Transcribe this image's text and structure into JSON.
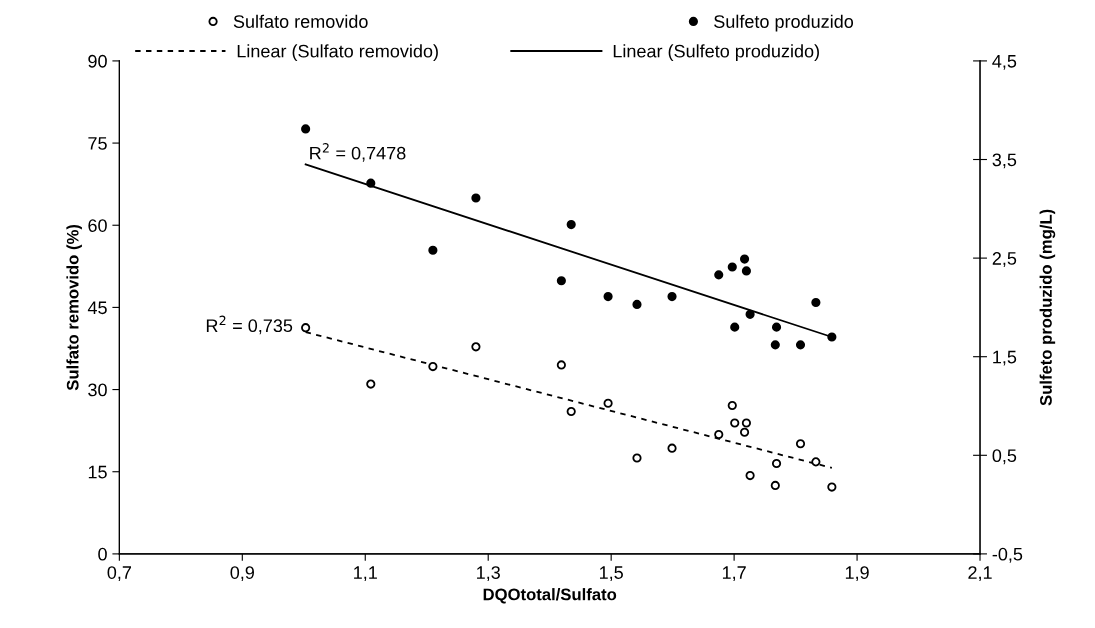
{
  "chart_data": {
    "type": "scatter",
    "xlabel": "DQOtotal/Sulfato",
    "ylabel": "Sulfato removido (%)",
    "y2label": "Sulfeto produzido (mg/L)",
    "xlim": [
      0.7,
      2.1
    ],
    "xticks": [
      {
        "value": 0.7,
        "label": "0,7"
      },
      {
        "value": 0.9,
        "label": "0,9"
      },
      {
        "value": 1.1,
        "label": "1,1"
      },
      {
        "value": 1.3,
        "label": "1,3"
      },
      {
        "value": 1.5,
        "label": "1,5"
      },
      {
        "value": 1.7,
        "label": "1,7"
      },
      {
        "value": 1.9,
        "label": "1,9"
      },
      {
        "value": 2.1,
        "label": "2,1"
      }
    ],
    "ylim": [
      0,
      90
    ],
    "yticks": [
      0,
      15,
      30,
      45,
      60,
      75,
      90
    ],
    "y2lim": [
      -0.5,
      4.5
    ],
    "y2ticks": [
      {
        "value": -0.5,
        "label": "-0,5"
      },
      {
        "value": 0.5,
        "label": "0,5"
      },
      {
        "value": 1.5,
        "label": "1,5"
      },
      {
        "value": 2.5,
        "label": "2,5"
      },
      {
        "value": 3.5,
        "label": "3,5"
      },
      {
        "value": 4.5,
        "label": "4,5"
      }
    ],
    "grid": false,
    "legend": "top",
    "series": [
      {
        "name": "Sulfato removido",
        "color": "#ffffff",
        "marker": "circle",
        "x": [
          1.003,
          1.109,
          1.21,
          1.28,
          1.419,
          1.435,
          1.495,
          1.542,
          1.599,
          1.675,
          1.697,
          1.701,
          1.717,
          1.72,
          1.726,
          1.767,
          1.769,
          1.808,
          1.833,
          1.859
        ],
        "values": [
          41.3,
          31.0,
          34.2,
          37.8,
          34.5,
          26.0,
          27.5,
          17.5,
          19.3,
          21.8,
          27.1,
          23.9,
          22.2,
          23.9,
          14.3,
          12.5,
          16.5,
          20.1,
          16.8,
          12.2
        ]
      },
      {
        "name": "Sulfeto produzido",
        "axis": "y2",
        "color": "#000000",
        "marker": "circle",
        "x": [
          1.003,
          1.109,
          1.21,
          1.28,
          1.419,
          1.435,
          1.495,
          1.542,
          1.599,
          1.675,
          1.697,
          1.701,
          1.717,
          1.72,
          1.726,
          1.767,
          1.769,
          1.808,
          1.833,
          1.859
        ],
        "values": [
          3.81,
          3.26,
          2.58,
          3.11,
          2.27,
          2.84,
          2.11,
          2.03,
          2.11,
          2.33,
          2.41,
          1.8,
          2.49,
          2.37,
          1.93,
          1.62,
          1.8,
          1.62,
          2.05,
          1.7
        ]
      },
      {
        "name": "Linear (Sulfato removido)",
        "type": "line",
        "color": "#000000",
        "line_style": "dashed",
        "marker": "none",
        "x": [
          1.003,
          1.859
        ],
        "values": [
          40.5,
          15.7
        ]
      },
      {
        "name": "Linear (Sulfeto produzido)",
        "type": "line",
        "axis": "y2",
        "color": "#000000",
        "line_style": "solid",
        "marker": "none",
        "x": [
          1.003,
          1.859
        ],
        "values": [
          3.45,
          1.7
        ]
      }
    ],
    "annotations": [
      "R$^{2}$ = 0,7478",
      "R$^{2}$ = 0,735"
    ]
  }
}
